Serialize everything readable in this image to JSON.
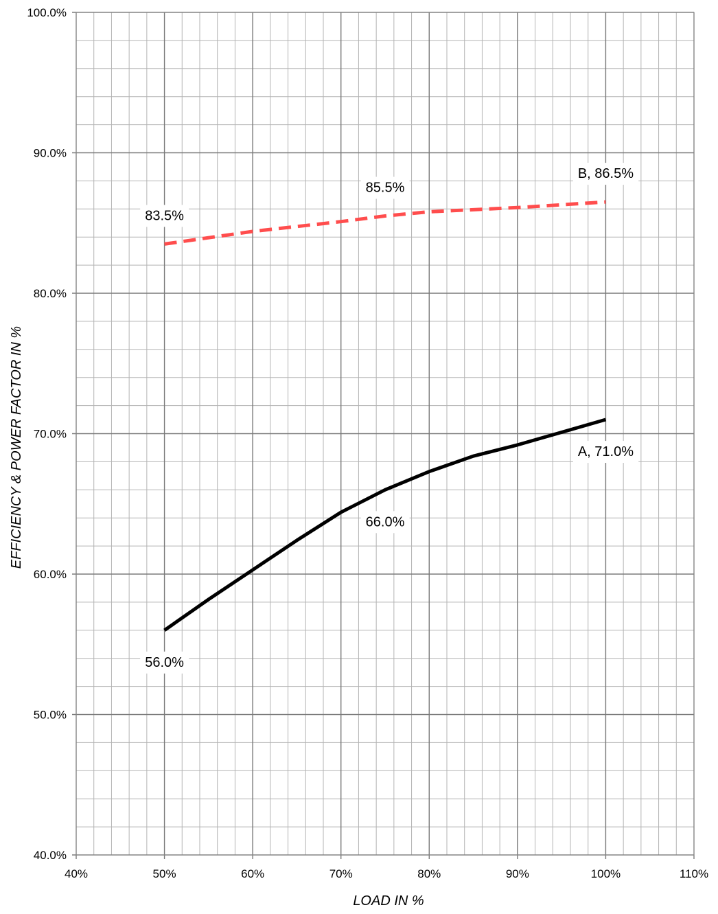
{
  "chart_data": {
    "type": "line",
    "xlabel": "LOAD IN %",
    "ylabel": "EFFICIENCY & POWER FACTOR IN %",
    "xlim": [
      40,
      110
    ],
    "ylim": [
      40,
      100
    ],
    "x_ticks": [
      "40%",
      "50%",
      "60%",
      "70%",
      "80%",
      "90%",
      "100%",
      "110%"
    ],
    "y_ticks": [
      "40.0%",
      "50.0%",
      "60.0%",
      "70.0%",
      "80.0%",
      "90.0%",
      "100.0%"
    ],
    "grid": true,
    "series": [
      {
        "name": "A",
        "color": "#000000",
        "style": "solid",
        "points": [
          [
            50,
            56.0
          ],
          [
            55,
            58.2
          ],
          [
            60,
            60.3
          ],
          [
            65,
            62.4
          ],
          [
            70,
            64.4
          ],
          [
            75,
            66.0
          ],
          [
            80,
            67.3
          ],
          [
            85,
            68.4
          ],
          [
            90,
            69.2
          ],
          [
            95,
            70.1
          ],
          [
            100,
            71.0
          ]
        ]
      },
      {
        "name": "B",
        "color": "#ff4d4d",
        "style": "dashed",
        "points": [
          [
            50,
            83.5
          ],
          [
            60,
            84.4
          ],
          [
            70,
            85.1
          ],
          [
            75,
            85.5
          ],
          [
            80,
            85.8
          ],
          [
            90,
            86.1
          ],
          [
            100,
            86.5
          ]
        ]
      }
    ],
    "data_labels": [
      {
        "text": "83.5%",
        "x": 50,
        "y": 83.5,
        "position": "above"
      },
      {
        "text": "85.5%",
        "x": 75,
        "y": 85.5,
        "position": "above"
      },
      {
        "text": "B, 86.5%",
        "x": 100,
        "y": 86.5,
        "position": "above"
      },
      {
        "text": "56.0%",
        "x": 50,
        "y": 56.0,
        "position": "below"
      },
      {
        "text": "66.0%",
        "x": 75,
        "y": 66.0,
        "position": "below"
      },
      {
        "text": "A, 71.0%",
        "x": 100,
        "y": 71.0,
        "position": "below"
      }
    ]
  }
}
